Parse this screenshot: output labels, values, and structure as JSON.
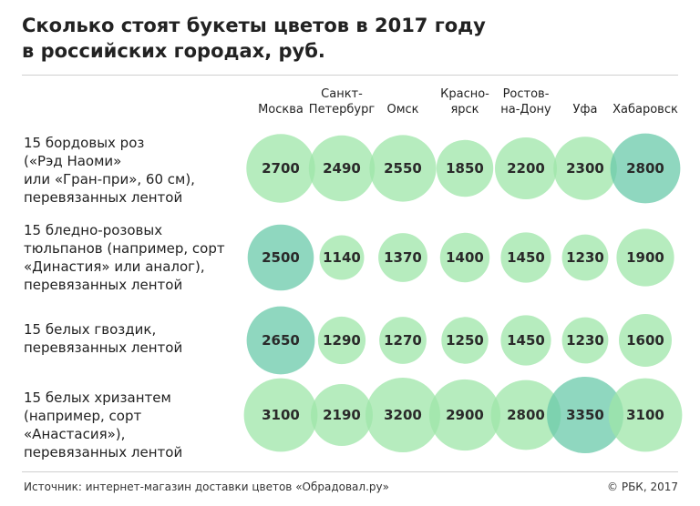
{
  "title": {
    "line1": "Сколько стоят букеты цветов в 2017 году",
    "line2": "в российских городах, руб."
  },
  "footer": {
    "source": "Источник: интернет-магазин доставки цветов «Обрадовал.ру»",
    "copyright": "© РБК, 2017"
  },
  "colors": {
    "bubble_light": "#9ee6a8",
    "bubble_max": "#6ac9a9"
  },
  "chart_data": {
    "type": "bubble-table",
    "columns": [
      [
        "Москва"
      ],
      [
        "Санкт-",
        "Петербург"
      ],
      [
        "Омск"
      ],
      [
        "Красно-",
        "ярск"
      ],
      [
        "Ростов-",
        "на-Дону"
      ],
      [
        "Уфа"
      ],
      [
        "Хабаровск"
      ]
    ],
    "rows": [
      {
        "label": [
          "15 бордовых роз",
          "(«Рэд Наоми»",
          "или «Гран-при», 60 см),",
          "перевязанных лентой"
        ],
        "values": [
          2700,
          2490,
          2550,
          1850,
          2200,
          2300,
          2800
        ]
      },
      {
        "label": [
          "15 бледно-розовых",
          "тюльпанов (например, сорт",
          "«Династия» или аналог),",
          "перевязанных лентой"
        ],
        "values": [
          2500,
          1140,
          1370,
          1400,
          1450,
          1230,
          1900
        ]
      },
      {
        "label": [
          "15 белых гвоздик,",
          "перевязанных лентой"
        ],
        "values": [
          2650,
          1290,
          1270,
          1250,
          1450,
          1230,
          1600
        ]
      },
      {
        "label": [
          "15 белых хризантем",
          "(например, сорт «Анастасия»),",
          "перевязанных лентой"
        ],
        "values": [
          3100,
          2190,
          3200,
          2900,
          2800,
          3350,
          3100
        ]
      }
    ]
  }
}
